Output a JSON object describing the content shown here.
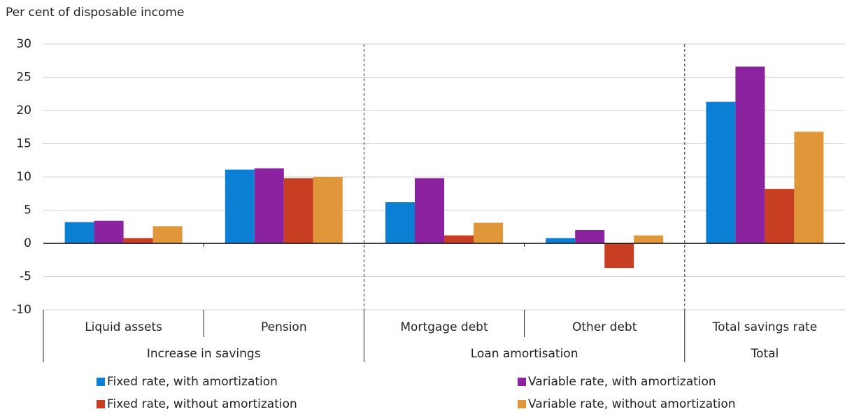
{
  "chart_data": {
    "type": "bar",
    "y_label": "Per cent of disposable income",
    "category_groups": [
      {
        "name": "Increase in savings",
        "categories": [
          "Liquid assets",
          "Pension"
        ]
      },
      {
        "name": "Loan amortisation",
        "categories": [
          "Mortgage debt",
          "Other debt"
        ]
      },
      {
        "name": "Total",
        "categories": [
          "Total savings rate"
        ]
      }
    ],
    "series": [
      {
        "name": "Fixed rate, with amortization",
        "color": "#0a7fd4",
        "values": [
          3.2,
          11.1,
          6.2,
          0.8,
          21.3
        ]
      },
      {
        "name": "Variable rate, with amortization",
        "color": "#8b22a0",
        "values": [
          3.4,
          11.3,
          9.8,
          2.0,
          26.6
        ]
      },
      {
        "name": "Fixed rate, without amortization",
        "color": "#c83e22",
        "values": [
          0.8,
          9.8,
          1.2,
          -3.7,
          8.2
        ]
      },
      {
        "name": "Variable rate, without amortization",
        "color": "#e0973a",
        "values": [
          2.6,
          10.0,
          3.1,
          1.2,
          16.8
        ]
      }
    ],
    "ylim": [
      -10,
      30
    ],
    "yticks": [
      -10,
      -5,
      0,
      5,
      10,
      15,
      20,
      25,
      30
    ],
    "grid": true
  }
}
